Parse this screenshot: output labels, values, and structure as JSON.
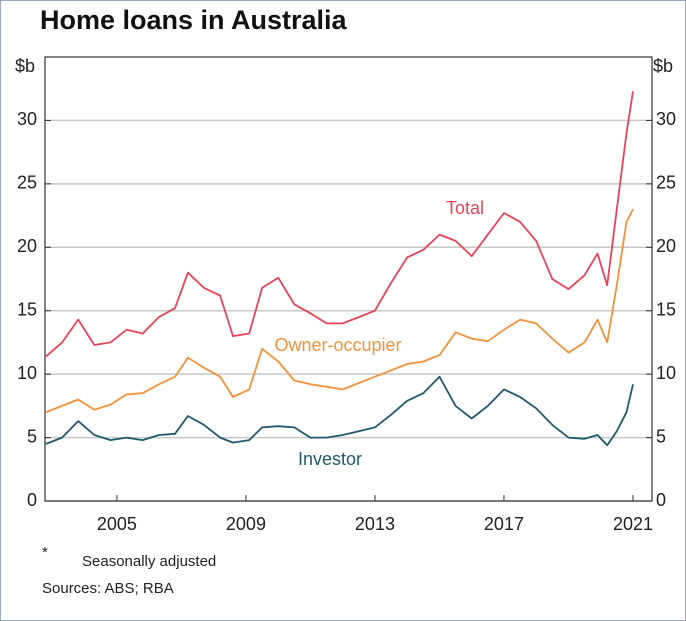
{
  "chart_data": {
    "type": "line",
    "title": "Home loans in Australia",
    "y_label": "$b",
    "y2_label": "$b",
    "footnote_marker": "*",
    "footnote": "Seasonally adjusted",
    "source": "Sources: ABS; RBA",
    "x": [
      2002.8,
      2003.3,
      2003.8,
      2004.3,
      2004.8,
      2005.3,
      2005.8,
      2006.3,
      2006.8,
      2007.2,
      2007.7,
      2008.2,
      2008.6,
      2009.1,
      2009.5,
      2010.0,
      2010.5,
      2011.0,
      2011.5,
      2012.0,
      2012.5,
      2013.0,
      2013.5,
      2014.0,
      2014.5,
      2015.0,
      2015.5,
      2016.0,
      2016.5,
      2017.0,
      2017.5,
      2018.0,
      2018.5,
      2019.0,
      2019.5,
      2019.9,
      2020.2,
      2020.5,
      2020.8,
      2021.0
    ],
    "series": [
      {
        "name": "Total",
        "color": "#e8435a",
        "values": [
          11.4,
          12.5,
          14.3,
          12.3,
          12.5,
          13.5,
          13.2,
          14.5,
          15.2,
          18.0,
          16.8,
          16.2,
          13.0,
          13.2,
          16.8,
          17.6,
          15.5,
          14.8,
          14.0,
          14.0,
          14.5,
          15.0,
          17.2,
          19.2,
          19.8,
          21.0,
          20.5,
          19.3,
          21.0,
          22.7,
          22.0,
          20.5,
          17.5,
          16.7,
          17.8,
          19.5,
          17.0,
          23.0,
          29.0,
          32.3
        ]
      },
      {
        "name": "Owner-occupier",
        "color": "#f5913b",
        "values": [
          7.0,
          7.5,
          8.0,
          7.2,
          7.6,
          8.4,
          8.5,
          9.2,
          9.8,
          11.3,
          10.5,
          9.8,
          8.2,
          8.8,
          12.0,
          11.0,
          9.5,
          9.2,
          9.0,
          8.8,
          9.3,
          9.8,
          10.3,
          10.8,
          11.0,
          11.5,
          13.3,
          12.8,
          12.6,
          13.5,
          14.3,
          14.0,
          12.8,
          11.7,
          12.5,
          14.3,
          12.5,
          17.0,
          22.0,
          23.0
        ]
      },
      {
        "name": "Investor",
        "color": "#1f5a6b",
        "values": [
          4.5,
          5.0,
          6.3,
          5.2,
          4.8,
          5.0,
          4.8,
          5.2,
          5.3,
          6.7,
          6.0,
          5.0,
          4.6,
          4.8,
          5.8,
          5.9,
          5.8,
          5.0,
          5.0,
          5.2,
          5.5,
          5.8,
          6.8,
          7.9,
          8.5,
          9.8,
          7.5,
          6.5,
          7.5,
          8.8,
          8.2,
          7.3,
          6.0,
          5.0,
          4.9,
          5.2,
          4.4,
          5.5,
          7.0,
          9.2
        ]
      }
    ],
    "xlim": [
      2002.77,
      2021.59
    ],
    "xticks": [
      2005,
      2009,
      2013,
      2017,
      2021
    ],
    "ylim": [
      0,
      35
    ],
    "yticks": [
      0,
      5,
      10,
      15,
      20,
      25,
      30
    ],
    "y2lim": [
      0,
      35
    ],
    "y2ticks": [
      0,
      5,
      10,
      15,
      20,
      25,
      30
    ],
    "grid": true
  }
}
